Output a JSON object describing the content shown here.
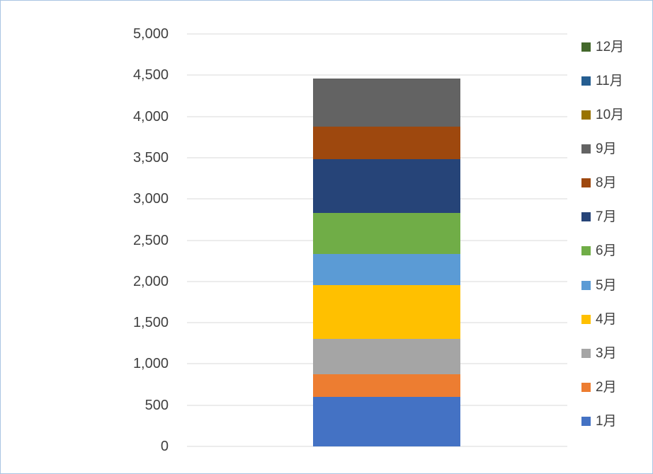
{
  "chart_data": {
    "type": "bar",
    "subtype": "stacked-column",
    "title": "",
    "xlabel": "",
    "ylabel": "",
    "ylim": [
      0,
      5000
    ],
    "ytick_interval": 500,
    "ytick_values": [
      0,
      500,
      1000,
      1500,
      2000,
      2500,
      3000,
      3500,
      4000,
      4500,
      5000
    ],
    "ytick_labels": [
      "0",
      "500",
      "1,000",
      "1,500",
      "2,000",
      "2,500",
      "3,000",
      "3,500",
      "4,000",
      "4,500",
      "5,000"
    ],
    "grid": true,
    "legend_position": "right",
    "categories": [
      "1月",
      "2月",
      "3月",
      "4月",
      "5月",
      "6月",
      "7月",
      "8月",
      "9月",
      "10月",
      "11月",
      "12月"
    ],
    "series": [
      {
        "name": "1月",
        "value": 600,
        "color": "#4472c4"
      },
      {
        "name": "2月",
        "value": 275,
        "color": "#ed7d31"
      },
      {
        "name": "3月",
        "value": 430,
        "color": "#a5a5a5"
      },
      {
        "name": "4月",
        "value": 650,
        "color": "#ffc000"
      },
      {
        "name": "5月",
        "value": 375,
        "color": "#5b9bd5"
      },
      {
        "name": "6月",
        "value": 500,
        "color": "#70ad47"
      },
      {
        "name": "7月",
        "value": 650,
        "color": "#264478"
      },
      {
        "name": "8月",
        "value": 400,
        "color": "#9e480e"
      },
      {
        "name": "9月",
        "value": 580,
        "color": "#636363"
      },
      {
        "name": "10月",
        "value": 0,
        "color": "#997300"
      },
      {
        "name": "11月",
        "value": 0,
        "color": "#255e91"
      },
      {
        "name": "12月",
        "value": 0,
        "color": "#43682b"
      }
    ],
    "colors": {
      "gridline": "#d9d9d9",
      "axis_text": "#404040"
    }
  }
}
